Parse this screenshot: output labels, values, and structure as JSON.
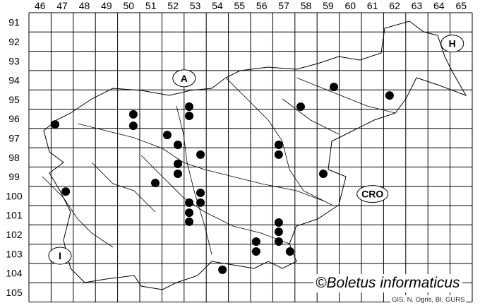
{
  "map": {
    "column_labels": [
      "46",
      "47",
      "48",
      "49",
      "50",
      "51",
      "52",
      "53",
      "54",
      "55",
      "56",
      "57",
      "58",
      "59",
      "60",
      "61",
      "62",
      "63",
      "64",
      "65"
    ],
    "row_labels": [
      "91",
      "92",
      "93",
      "94",
      "95",
      "96",
      "97",
      "98",
      "99",
      "100",
      "101",
      "102",
      "103",
      "104",
      "105"
    ],
    "country_labels": [
      {
        "text": "A",
        "col": 53.0,
        "row": 94.4
      },
      {
        "text": "H",
        "col": 65.1,
        "row": 92.6
      },
      {
        "text": "CRO",
        "col": 61.5,
        "row": 100.4
      },
      {
        "text": "I",
        "col": 47.4,
        "row": 103.6
      }
    ],
    "records": [
      {
        "col": 47.18,
        "row": 96.79
      },
      {
        "col": 50.71,
        "row": 96.27
      },
      {
        "col": 50.71,
        "row": 96.86
      },
      {
        "col": 53.23,
        "row": 95.87
      },
      {
        "col": 53.23,
        "row": 96.35
      },
      {
        "col": 52.24,
        "row": 97.34
      },
      {
        "col": 52.72,
        "row": 97.85
      },
      {
        "col": 53.74,
        "row": 98.36
      },
      {
        "col": 52.72,
        "row": 98.84
      },
      {
        "col": 52.72,
        "row": 99.35
      },
      {
        "col": 51.7,
        "row": 99.83
      },
      {
        "col": 47.66,
        "row": 100.27
      },
      {
        "col": 53.74,
        "row": 100.34
      },
      {
        "col": 53.23,
        "row": 100.85
      },
      {
        "col": 53.74,
        "row": 100.85
      },
      {
        "col": 53.23,
        "row": 101.37
      },
      {
        "col": 53.23,
        "row": 101.84
      },
      {
        "col": 59.76,
        "row": 94.85
      },
      {
        "col": 62.27,
        "row": 95.29
      },
      {
        "col": 58.26,
        "row": 95.87
      },
      {
        "col": 57.27,
        "row": 97.85
      },
      {
        "col": 57.27,
        "row": 98.36
      },
      {
        "col": 59.28,
        "row": 99.35
      },
      {
        "col": 57.27,
        "row": 101.88
      },
      {
        "col": 57.27,
        "row": 102.36
      },
      {
        "col": 57.27,
        "row": 102.87
      },
      {
        "col": 56.25,
        "row": 102.87
      },
      {
        "col": 56.25,
        "row": 103.38
      },
      {
        "col": 57.78,
        "row": 103.38
      },
      {
        "col": 54.73,
        "row": 104.33
      }
    ],
    "dot_color": "#000000",
    "line_color": "#000000"
  },
  "credit": "©Boletus informaticus",
  "source": "GIS, N. Ogris, BI, GURS"
}
